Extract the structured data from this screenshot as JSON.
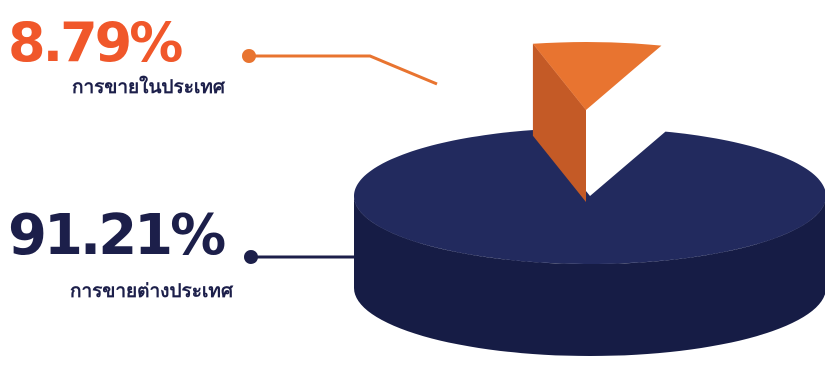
{
  "chart_data": {
    "type": "pie",
    "title": "",
    "categories": [
      "การขายในประเทศ",
      "การขายต่างประเทศ"
    ],
    "series": [
      {
        "values": [
          8.79,
          91.21
        ]
      }
    ],
    "slices": [
      {
        "label": "การขายในประเทศ",
        "percent_text": "8.79%",
        "value": 8.79,
        "color": "#e87430",
        "side_color": "#c45a26"
      },
      {
        "label": "การขายต่างประเทศ",
        "percent_text": "91.21%",
        "value": 91.21,
        "color": "#222a5e",
        "side_color": "#161c45"
      }
    ],
    "exploded_slice": "การขายในประเทศ",
    "style": "3d"
  },
  "colors": {
    "accent_orange": "#f0572a",
    "navy": "#1c1f4a",
    "leader_orange": "#e87430",
    "leader_navy": "#1c1f4a"
  }
}
